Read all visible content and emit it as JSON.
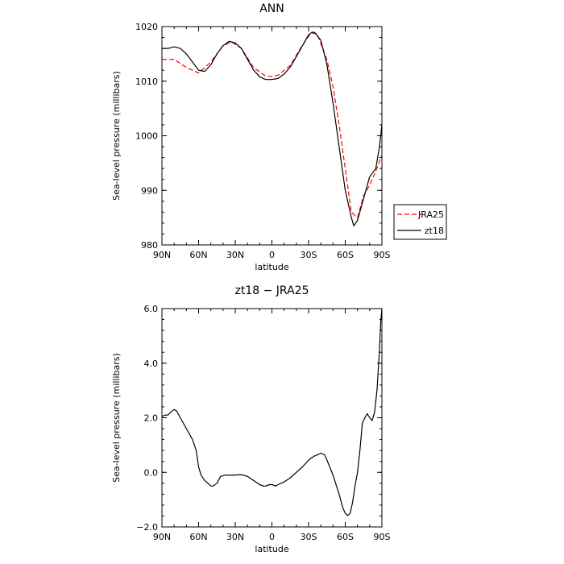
{
  "chart_data": [
    {
      "type": "line",
      "title": "ANN",
      "xlabel": "latitude",
      "ylabel": "Sea-level pressure (millibars)",
      "xlim": [
        90,
        -90
      ],
      "ylim": [
        980,
        1020
      ],
      "x_ticks": [
        90,
        60,
        30,
        0,
        -30,
        -60,
        -90
      ],
      "x_tick_labels": [
        "90N",
        "60N",
        "30N",
        "0",
        "30S",
        "60S",
        "90S"
      ],
      "y_ticks": [
        980,
        990,
        1000,
        1010,
        1020
      ],
      "y_tick_labels": [
        "980",
        "990",
        "1000",
        "1010",
        "1020"
      ],
      "grid": false,
      "legend_position": "right",
      "series": [
        {
          "name": "JRA25",
          "color": "#ff0000",
          "dash": "dashed",
          "x": [
            90,
            80,
            70,
            60,
            50,
            40,
            33,
            25,
            15,
            5,
            0,
            -5,
            -15,
            -25,
            -32,
            -37,
            -45,
            -50,
            -55,
            -60,
            -65,
            -70,
            -75,
            -80,
            -85,
            -90
          ],
          "y": [
            1014,
            1014,
            1012.5,
            1011.5,
            1013.5,
            1016.5,
            1017.2,
            1016,
            1012.5,
            1010.9,
            1010.9,
            1011.1,
            1012.9,
            1016.6,
            1018.8,
            1018.7,
            1013.9,
            1009,
            1002,
            994,
            986,
            985,
            989,
            991,
            993.5,
            996.5
          ]
        },
        {
          "name": "zt18",
          "color": "#000000",
          "dash": "solid",
          "x": [
            90,
            85,
            80,
            75,
            70,
            65,
            60,
            55,
            50,
            45,
            40,
            35,
            33,
            30,
            25,
            20,
            15,
            10,
            5,
            0,
            -5,
            -10,
            -15,
            -20,
            -25,
            -30,
            -33,
            -35,
            -40,
            -45,
            -50,
            -55,
            -60,
            -65,
            -67,
            -70,
            -75,
            -80,
            -85,
            -88,
            -90
          ],
          "y": [
            1016,
            1016,
            1016.3,
            1016,
            1015,
            1013.5,
            1012,
            1011.8,
            1013,
            1015,
            1016.5,
            1017.3,
            1017.2,
            1017,
            1016,
            1014,
            1012,
            1010.8,
            1010.3,
            1010.3,
            1010.5,
            1011.3,
            1012.6,
            1014.5,
            1016.5,
            1018.5,
            1019,
            1018.9,
            1017.5,
            1013,
            1006,
            998,
            990,
            985,
            983.5,
            984.5,
            988.5,
            992.5,
            994,
            998,
            1002
          ]
        }
      ]
    },
    {
      "type": "line",
      "title": "zt18 − JRA25",
      "xlabel": "latitude",
      "ylabel": "Sea-level pressure (millibars)",
      "xlim": [
        90,
        -90
      ],
      "ylim": [
        -2,
        6
      ],
      "x_ticks": [
        90,
        60,
        30,
        0,
        -30,
        -60,
        -90
      ],
      "x_tick_labels": [
        "90N",
        "60N",
        "30N",
        "0",
        "30S",
        "60S",
        "90S"
      ],
      "y_ticks": [
        -2,
        0,
        2,
        4,
        6
      ],
      "y_tick_labels": [
        "−2.0",
        "0.0",
        "2.0",
        "4.0",
        "6.0"
      ],
      "grid": false,
      "series": [
        {
          "color": "#000000",
          "dash": "solid",
          "x": [
            90,
            87,
            85,
            83,
            80,
            78,
            75,
            70,
            65,
            62,
            60,
            58,
            55,
            50,
            48,
            45,
            42,
            38,
            35,
            30,
            25,
            20,
            15,
            10,
            7,
            5,
            2,
            0,
            -3,
            -5,
            -10,
            -15,
            -20,
            -25,
            -30,
            -33,
            -35,
            -40,
            -43,
            -45,
            -50,
            -55,
            -58,
            -60,
            -62,
            -64,
            -66,
            -68,
            -70,
            -72,
            -74,
            -76,
            -78,
            -80,
            -82,
            -84,
            -86,
            -88,
            -89,
            -90
          ],
          "y": [
            2.05,
            2.1,
            2.1,
            2.2,
            2.3,
            2.25,
            2,
            1.6,
            1.2,
            0.8,
            0.2,
            -0.1,
            -0.3,
            -0.5,
            -0.5,
            -0.4,
            -0.15,
            -0.1,
            -0.1,
            -0.1,
            -0.08,
            -0.15,
            -0.3,
            -0.45,
            -0.5,
            -0.5,
            -0.45,
            -0.45,
            -0.5,
            -0.45,
            -0.35,
            -0.2,
            0,
            0.2,
            0.45,
            0.55,
            0.6,
            0.7,
            0.65,
            0.45,
            -0.1,
            -0.8,
            -1.3,
            -1.5,
            -1.58,
            -1.5,
            -1.1,
            -0.5,
            0,
            0.8,
            1.8,
            2.0,
            2.15,
            2.0,
            1.9,
            2.2,
            3.0,
            4.5,
            5.5,
            6.0
          ]
        }
      ]
    }
  ]
}
